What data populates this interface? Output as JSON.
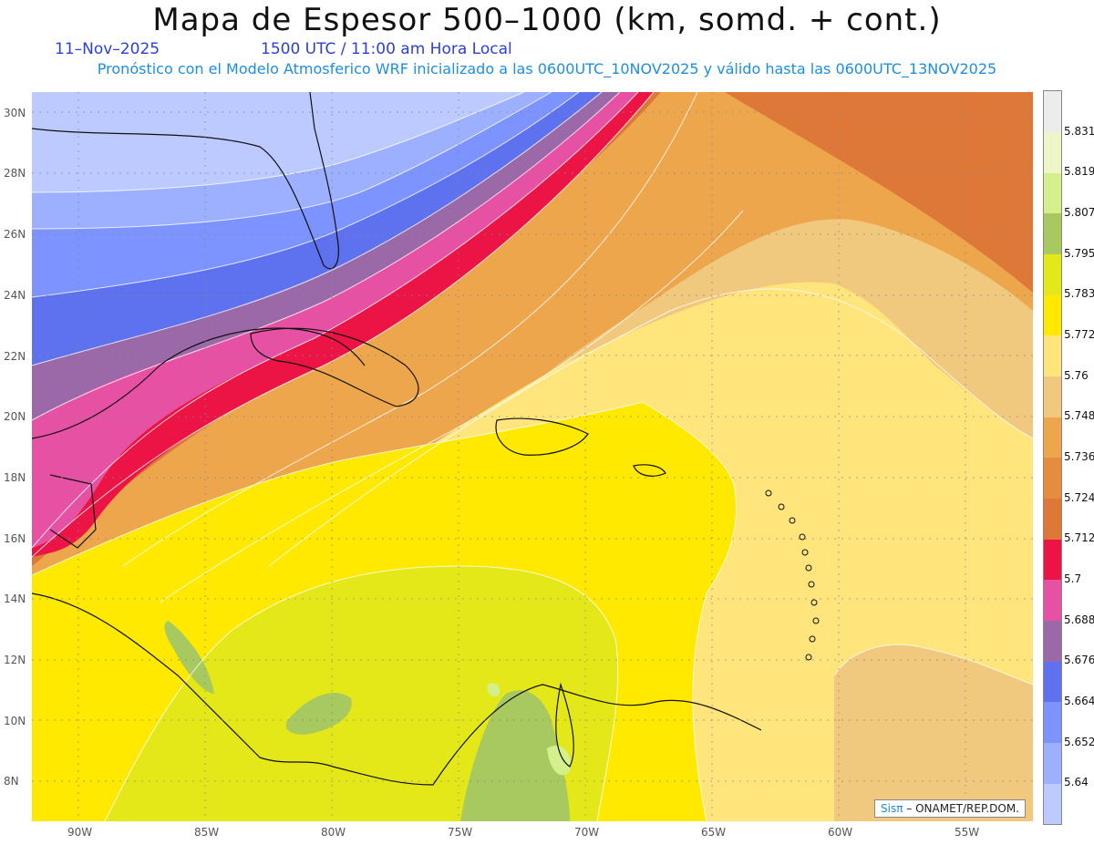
{
  "header": {
    "title": "Mapa de Espesor 500–1000 (km, somd. + cont.)",
    "date": "11–Nov–2025",
    "time": "1500 UTC / 11:00 am Hora Local",
    "forecast": "Pronóstico con el Modelo Atmosferico WRF inicializado a las 0600UTC_10NOV2025 y válido hasta las  0600UTC_13NOV2025"
  },
  "map": {
    "lat_labels": [
      "30N",
      "28N",
      "26N",
      "24N",
      "22N",
      "20N",
      "18N",
      "16N",
      "14N",
      "12N",
      "10N",
      "8N"
    ],
    "lon_labels": [
      "90W",
      "85W",
      "80W",
      "75W",
      "70W",
      "65W",
      "60W",
      "55W"
    ],
    "credit_logo": "Sisπ",
    "credit_text": " – ONAMET/REP.DOM."
  },
  "legend": {
    "labels": [
      "5.64",
      "5.652",
      "5.664",
      "5.676",
      "5.688",
      "5.7",
      "5.712",
      "5.724",
      "5.736",
      "5.748",
      "5.76",
      "5.772",
      "5.783",
      "5.795",
      "5.807",
      "5.819",
      "5.831"
    ],
    "colors": [
      "#bccaff",
      "#9cb0ff",
      "#7d93ff",
      "#5e72f0",
      "#9b69a8",
      "#e651a3",
      "#ec1444",
      "#dd7838",
      "#e58c3f",
      "#eea64c",
      "#f1c97e",
      "#ffe57c",
      "#ffe900",
      "#e4e818",
      "#a8c860",
      "#d4f08c",
      "#eef6c8",
      "#ececec"
    ]
  }
}
